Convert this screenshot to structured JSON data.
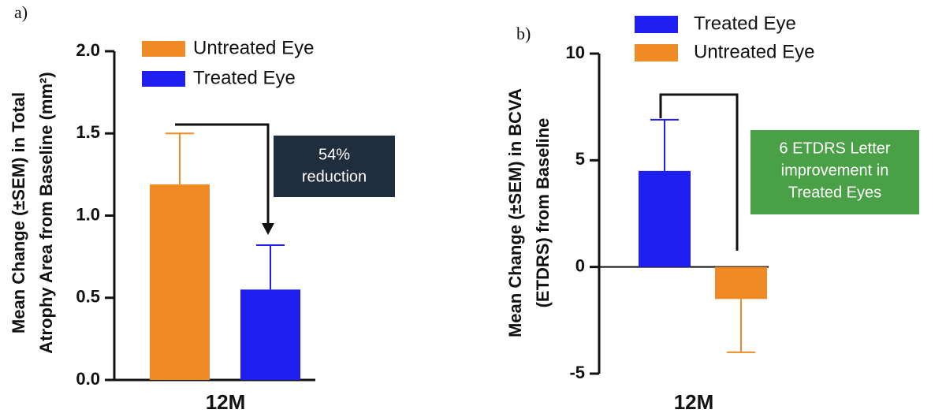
{
  "chart_data": [
    {
      "type": "bar",
      "panel_label": "a)",
      "ylabel": [
        "Mean Change (±SEM)  in Total",
        "Atrophy Area from Baseline (mm²)"
      ],
      "categories": [
        "12M"
      ],
      "series": [
        {
          "name": "Untreated Eye",
          "color": "#f08a24",
          "values": [
            1.19
          ],
          "errors": [
            0.31
          ]
        },
        {
          "name": "Treated Eye",
          "color": "#1f1ff0",
          "values": [
            0.55
          ],
          "errors": [
            0.27
          ]
        }
      ],
      "ylim": [
        0,
        2
      ],
      "yticks": [
        {
          "value": 0,
          "label": "0.0"
        },
        0.5,
        {
          "value": 1,
          "label": "1.0"
        },
        1.5,
        {
          "value": 2,
          "label": "2.0"
        }
      ],
      "annotation": [
        "54%",
        "reduction"
      ]
    },
    {
      "type": "bar",
      "panel_label": "b)",
      "ylabel": [
        "Mean Change (±SEM) in BCVA",
        "(ETDRS) from Baseline"
      ],
      "categories": [
        "12M"
      ],
      "series": [
        {
          "name": "Treated Eye",
          "color": "#1f1ff0",
          "values": [
            4.5
          ],
          "errors": [
            2.4
          ]
        },
        {
          "name": "Untreated Eye",
          "color": "#f08a24",
          "values": [
            -1.5
          ],
          "errors": [
            2.5
          ]
        }
      ],
      "ylim": [
        -5,
        10
      ],
      "yticks": [
        -5,
        0,
        5,
        10
      ],
      "annotation": [
        "6 ETDRS Letter",
        "improvement in",
        "Treated Eyes"
      ]
    }
  ]
}
